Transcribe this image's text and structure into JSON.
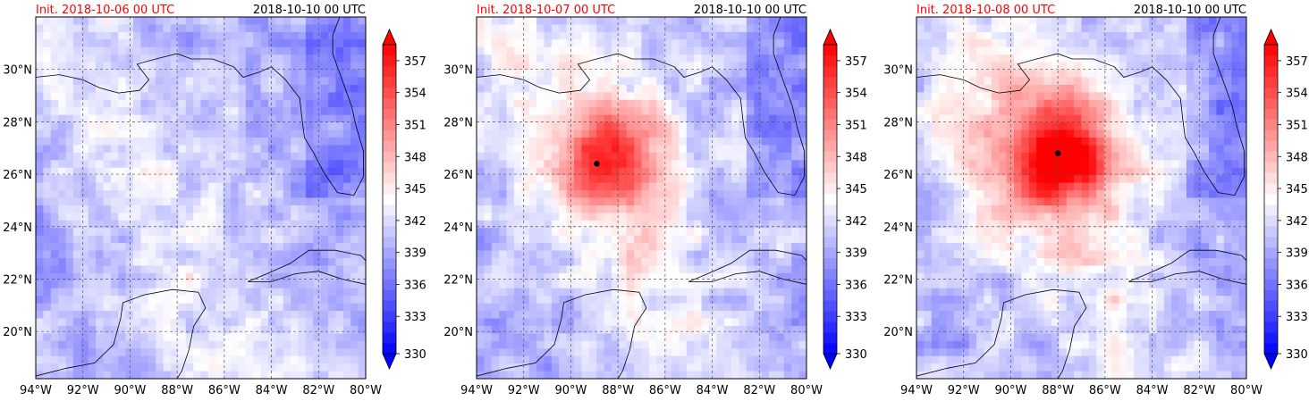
{
  "chart_data": [
    {
      "type": "heatmap",
      "title_left": "Init. 2018-10-06 00 UTC",
      "title_right": "2018-10-10 00 UTC",
      "xlim": [
        -94,
        -80
      ],
      "ylim": [
        18.2,
        32
      ],
      "x_ticks": [
        -94,
        -92,
        -90,
        -88,
        -86,
        -84,
        -82,
        -80
      ],
      "x_tick_labels": [
        "94°W",
        "92°W",
        "90°W",
        "88°W",
        "86°W",
        "84°W",
        "82°W",
        "80°W"
      ],
      "y_ticks": [
        20,
        22,
        24,
        26,
        28,
        30
      ],
      "y_tick_labels": [
        "20°N",
        "22°N",
        "24°N",
        "26°N",
        "28°N",
        "30°N"
      ],
      "grid": true,
      "storm_center": null,
      "field": {
        "intensity": 0.0,
        "center": [
          -88.3,
          26.5
        ]
      },
      "colorbar": {
        "min": 330,
        "max": 359,
        "ticks": [
          330,
          333,
          336,
          339,
          342,
          345,
          348,
          351,
          354,
          357
        ],
        "extend": "both"
      }
    },
    {
      "type": "heatmap",
      "title_left": "Init. 2018-10-07 00 UTC",
      "title_right": "2018-10-10 00 UTC",
      "xlim": [
        -94,
        -80
      ],
      "ylim": [
        18.2,
        32
      ],
      "x_ticks": [
        -94,
        -92,
        -90,
        -88,
        -86,
        -84,
        -82,
        -80
      ],
      "x_tick_labels": [
        "94°W",
        "92°W",
        "90°W",
        "88°W",
        "86°W",
        "84°W",
        "82°W",
        "80°W"
      ],
      "y_ticks": [
        20,
        22,
        24,
        26,
        28,
        30
      ],
      "y_tick_labels": [
        "20°N",
        "22°N",
        "24°N",
        "26°N",
        "28°N",
        "30°N"
      ],
      "grid": true,
      "storm_center": [
        -88.9,
        26.4
      ],
      "field": {
        "intensity": 0.65,
        "center": [
          -88.3,
          26.8
        ]
      },
      "colorbar": {
        "min": 330,
        "max": 359,
        "ticks": [
          330,
          333,
          336,
          339,
          342,
          345,
          348,
          351,
          354,
          357
        ],
        "extend": "both"
      }
    },
    {
      "type": "heatmap",
      "title_left": "Init. 2018-10-08 00 UTC",
      "title_right": "2018-10-10 00 UTC",
      "xlim": [
        -94,
        -80
      ],
      "ylim": [
        18.2,
        32
      ],
      "x_ticks": [
        -94,
        -92,
        -90,
        -88,
        -86,
        -84,
        -82,
        -80
      ],
      "x_tick_labels": [
        "94°W",
        "92°W",
        "90°W",
        "88°W",
        "86°W",
        "84°W",
        "82°W",
        "80°W"
      ],
      "y_ticks": [
        20,
        22,
        24,
        26,
        28,
        30
      ],
      "y_tick_labels": [
        "20°N",
        "22°N",
        "24°N",
        "26°N",
        "28°N",
        "30°N"
      ],
      "grid": true,
      "storm_center": [
        -88.0,
        26.8
      ],
      "field": {
        "intensity": 1.0,
        "center": [
          -87.9,
          26.8
        ]
      },
      "colorbar": {
        "min": 330,
        "max": 359,
        "ticks": [
          330,
          333,
          336,
          339,
          342,
          345,
          348,
          351,
          354,
          357
        ],
        "extend": "both"
      }
    }
  ],
  "colors": {
    "title_left": "#ff0000",
    "cmap_low": "#0000ff",
    "cmap_mid": "#ffffff",
    "cmap_high": "#ff0000",
    "coastline": "#000000",
    "storm_marker": "#000000"
  }
}
